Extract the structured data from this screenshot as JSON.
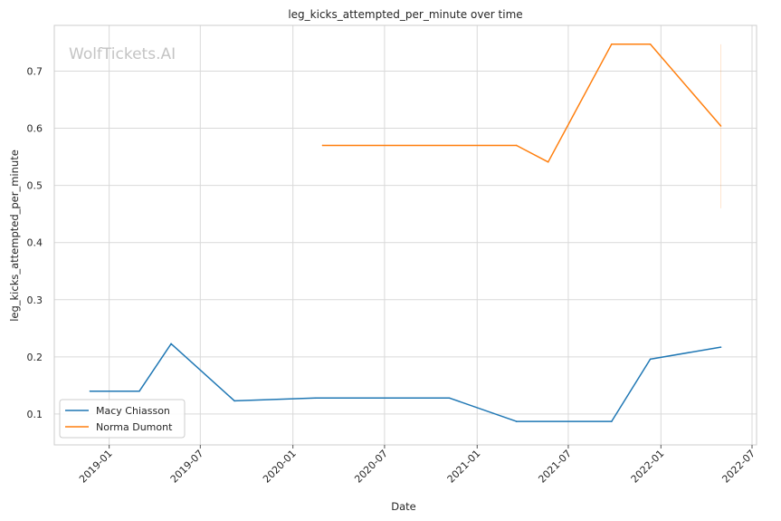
{
  "chart_data": {
    "type": "line",
    "title": "leg_kicks_attempted_per_minute over time",
    "xlabel": "Date",
    "ylabel": "leg_kicks_attempted_per_minute",
    "watermark": "WolfTickets.AI",
    "x_type": "date",
    "xlim": [
      "2018-09-14",
      "2022-07-10"
    ],
    "ylim": [
      0.046,
      0.78
    ],
    "x_ticks": [
      {
        "date": "2019-01-01",
        "label": "2019-01"
      },
      {
        "date": "2019-07-01",
        "label": "2019-07"
      },
      {
        "date": "2020-01-01",
        "label": "2020-01"
      },
      {
        "date": "2020-07-01",
        "label": "2020-07"
      },
      {
        "date": "2021-01-01",
        "label": "2021-01"
      },
      {
        "date": "2021-07-01",
        "label": "2021-07"
      },
      {
        "date": "2022-01-01",
        "label": "2022-01"
      },
      {
        "date": "2022-07-01",
        "label": "2022-07"
      }
    ],
    "y_ticks": [
      0.1,
      0.2,
      0.3,
      0.4,
      0.5,
      0.6,
      0.7
    ],
    "grid": true,
    "legend_position": "lower-left",
    "series": [
      {
        "name": "Macy Chiasson",
        "color": "#1f77b4",
        "points": [
          {
            "x": "2018-11-24",
            "y": 0.14
          },
          {
            "x": "2019-03-02",
            "y": 0.14
          },
          {
            "x": "2019-05-04",
            "y": 0.223
          },
          {
            "x": "2019-09-07",
            "y": 0.123
          },
          {
            "x": "2020-02-15",
            "y": 0.128
          },
          {
            "x": "2020-11-07",
            "y": 0.128
          },
          {
            "x": "2021-03-20",
            "y": 0.087
          },
          {
            "x": "2021-09-25",
            "y": 0.087
          },
          {
            "x": "2021-12-11",
            "y": 0.196
          },
          {
            "x": "2022-04-30",
            "y": 0.217
          }
        ]
      },
      {
        "name": "Norma Dumont",
        "color": "#ff7f0e",
        "points": [
          {
            "x": "2020-02-29",
            "y": 0.57
          },
          {
            "x": "2021-03-20",
            "y": 0.57
          },
          {
            "x": "2021-05-22",
            "y": 0.541
          },
          {
            "x": "2021-09-25",
            "y": 0.747
          },
          {
            "x": "2021-12-11",
            "y": 0.747
          },
          {
            "x": "2022-04-30",
            "y": 0.604
          }
        ],
        "error_band": {
          "x": "2022-04-30",
          "low": 0.46,
          "high": 0.747
        }
      }
    ]
  }
}
